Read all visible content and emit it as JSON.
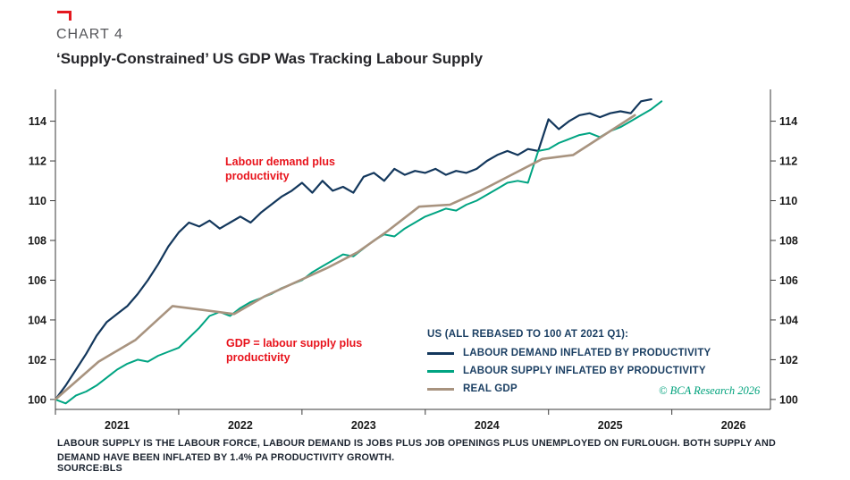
{
  "header": {
    "kicker": "CHART 4",
    "title": "‘Supply-Constrained’ US GDP Was Tracking Labour Supply"
  },
  "annotations": [
    {
      "text": "Labour demand plus productivity"
    },
    {
      "text": "GDP = labour supply plus productivity"
    }
  ],
  "copyright": "© BCA Research 2026",
  "footer": {
    "note": "LABOUR SUPPLY IS THE LABOUR FORCE, LABOUR DEMAND IS JOBS PLUS JOB OPENINGS PLUS UNEMPLOYED ON FURLOUGH. BOTH SUPPLY AND DEMAND HAVE BEEN INFLATED BY 1.4% PA PRODUCTIVITY GROWTH.",
    "source": "SOURCE:BLS"
  },
  "chart_data": {
    "type": "line",
    "title": "‘Supply-Constrained’ US GDP Was Tracking Labour Supply",
    "legend_title": "US (ALL REBASED TO 100 AT 2021 Q1):",
    "legend_position": "bottom-right-inside",
    "grid": false,
    "xlim": [
      2021.0,
      2026.8
    ],
    "ylim": [
      99.5,
      115.6
    ],
    "x_ticks": [
      2021,
      2022,
      2023,
      2024,
      2025,
      2026
    ],
    "y_ticks": [
      100,
      102,
      104,
      106,
      108,
      110,
      112,
      114
    ],
    "y_axis": "both sides",
    "series": [
      {
        "name": "LABOUR DEMAND INFLATED BY PRODUCTIVITY",
        "color": "#13375c",
        "width": 2.2,
        "x_start": 2021.0,
        "x_step": 0.083333,
        "values": [
          100.0,
          100.7,
          101.5,
          102.3,
          103.2,
          103.9,
          104.3,
          104.7,
          105.3,
          106.0,
          106.8,
          107.7,
          108.4,
          108.9,
          108.7,
          109.0,
          108.6,
          108.9,
          109.2,
          108.9,
          109.4,
          109.8,
          110.2,
          110.5,
          110.9,
          110.4,
          111.0,
          110.5,
          110.7,
          110.4,
          111.2,
          111.4,
          111.0,
          111.6,
          111.3,
          111.5,
          111.4,
          111.6,
          111.3,
          111.5,
          111.4,
          111.6,
          112.0,
          112.3,
          112.5,
          112.3,
          112.6,
          112.5,
          114.1,
          113.6,
          114.0,
          114.3,
          114.4,
          114.2,
          114.4,
          114.5,
          114.4,
          115.0,
          115.1
        ]
      },
      {
        "name": "LABOUR SUPPLY INFLATED BY PRODUCTIVITY",
        "color": "#00a482",
        "width": 2.0,
        "x_start": 2021.0,
        "x_step": 0.083333,
        "values": [
          100.0,
          99.8,
          100.2,
          100.4,
          100.7,
          101.1,
          101.5,
          101.8,
          102.0,
          101.9,
          102.2,
          102.4,
          102.6,
          103.1,
          103.6,
          104.2,
          104.4,
          104.2,
          104.6,
          104.9,
          105.1,
          105.3,
          105.6,
          105.8,
          106.0,
          106.4,
          106.7,
          107.0,
          107.3,
          107.2,
          107.6,
          108.0,
          108.3,
          108.2,
          108.6,
          108.9,
          109.2,
          109.4,
          109.6,
          109.5,
          109.8,
          110.0,
          110.3,
          110.6,
          110.9,
          111.0,
          110.9,
          112.5,
          112.6,
          112.9,
          113.1,
          113.3,
          113.4,
          113.2,
          113.5,
          113.7,
          114.0,
          114.3,
          114.6,
          115.0
        ]
      },
      {
        "name": "REAL GDP",
        "color": "#a8937f",
        "width": 2.6,
        "x": [
          2021.0,
          2021.35,
          2021.65,
          2021.95,
          2022.2,
          2022.45,
          2022.7,
          2022.95,
          2023.2,
          2023.45,
          2023.7,
          2023.95,
          2024.2,
          2024.45,
          2024.7,
          2024.95,
          2025.2,
          2025.45,
          2025.7
        ],
        "values": [
          100.0,
          101.9,
          103.0,
          104.7,
          104.5,
          104.3,
          105.2,
          105.9,
          106.6,
          107.4,
          108.5,
          109.7,
          109.8,
          110.5,
          111.3,
          112.1,
          112.3,
          113.3,
          114.3
        ]
      }
    ]
  }
}
